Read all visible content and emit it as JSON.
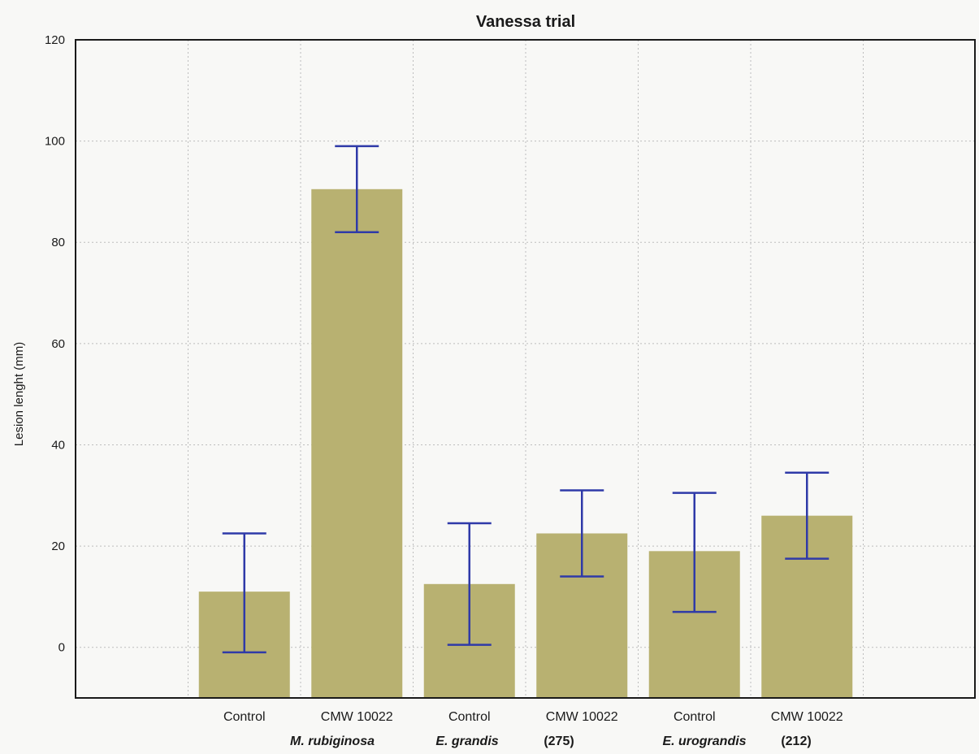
{
  "chart_data": {
    "type": "bar",
    "title": "Vanessa trial",
    "ylabel": "Lesion lenght (mm)",
    "xlabel": "",
    "ylim": [
      -10,
      120
    ],
    "yticks": [
      "0",
      "20",
      "40",
      "60",
      "80",
      "100",
      "120"
    ],
    "categories": [
      "Control",
      "CMW 10022",
      "Control",
      "CMW 10022",
      "Control",
      "CMW 10022"
    ],
    "values": [
      11,
      90.5,
      12.5,
      22.5,
      19,
      26
    ],
    "error_low": [
      -1,
      82,
      0.5,
      14,
      7,
      17.5
    ],
    "error_high": [
      22.5,
      99,
      24.5,
      31,
      30.5,
      34.5
    ],
    "group_labels": [
      {
        "text": "M. rubiginosa",
        "italic": true
      },
      {
        "text": "E. grandis",
        "italic": true
      },
      {
        "text": "(275)",
        "italic": false
      },
      {
        "text": "E. urograndis",
        "italic": true
      },
      {
        "text": "(212)",
        "italic": false
      }
    ],
    "grid": true,
    "bar_color": "#b8b171",
    "error_bar_color": "#2f3aa8",
    "grid_color": "#bdbdbd",
    "axis_color": "#1a1a1a"
  }
}
